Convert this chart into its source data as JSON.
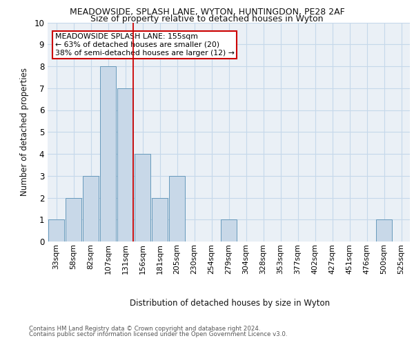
{
  "title1": "MEADOWSIDE, SPLASH LANE, WYTON, HUNTINGDON, PE28 2AF",
  "title2": "Size of property relative to detached houses in Wyton",
  "xlabel": "Distribution of detached houses by size in Wyton",
  "ylabel": "Number of detached properties",
  "footnote1": "Contains HM Land Registry data © Crown copyright and database right 2024.",
  "footnote2": "Contains public sector information licensed under the Open Government Licence v3.0.",
  "bin_labels": [
    "33sqm",
    "58sqm",
    "82sqm",
    "107sqm",
    "131sqm",
    "156sqm",
    "181sqm",
    "205sqm",
    "230sqm",
    "254sqm",
    "279sqm",
    "304sqm",
    "328sqm",
    "353sqm",
    "377sqm",
    "402sqm",
    "427sqm",
    "451sqm",
    "476sqm",
    "500sqm",
    "525sqm"
  ],
  "counts": [
    1,
    2,
    3,
    8,
    7,
    4,
    2,
    3,
    0,
    0,
    1,
    0,
    0,
    0,
    0,
    0,
    0,
    0,
    0,
    1,
    0
  ],
  "bar_color": "#c8d8e8",
  "bar_edge_color": "#6699bb",
  "subject_bar_index": 4,
  "subject_line_color": "#cc0000",
  "annotation_text": "MEADOWSIDE SPLASH LANE: 155sqm\n← 63% of detached houses are smaller (20)\n38% of semi-detached houses are larger (12) →",
  "annotation_box_color": "#ffffff",
  "annotation_box_edge": "#cc0000",
  "grid_color": "#c5d8ea",
  "background_color": "#eaf0f6",
  "ylim": [
    0,
    10
  ],
  "yticks": [
    0,
    1,
    2,
    3,
    4,
    5,
    6,
    7,
    8,
    9,
    10
  ],
  "fig_bg": "#ffffff",
  "title1_fontsize": 9,
  "title2_fontsize": 9
}
